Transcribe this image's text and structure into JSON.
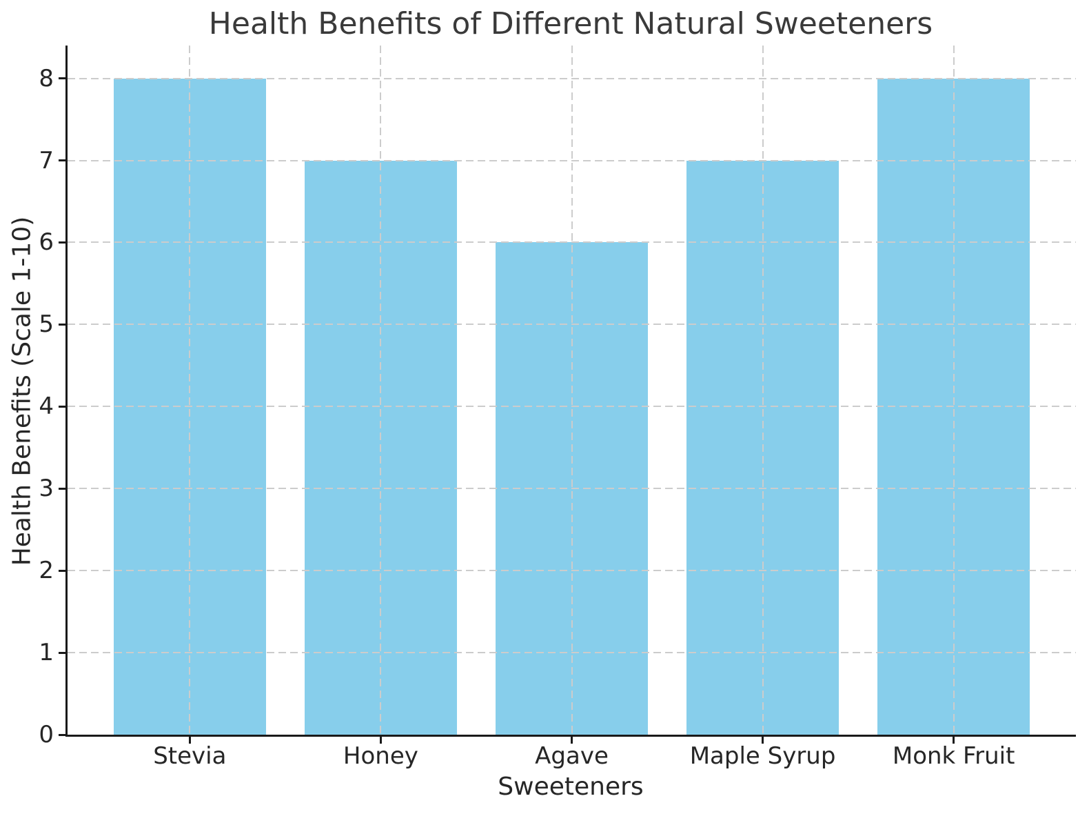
{
  "figure": {
    "background": "#ffffff",
    "title_color": "#3a3a3a",
    "text_color": "#262626",
    "spine_color": "#1a1a1a"
  },
  "chart_data": {
    "type": "bar",
    "title": "Health Benefits of Different Natural Sweeteners",
    "xlabel": "Sweeteners",
    "ylabel": "Health Benefits (Scale 1-10)",
    "categories": [
      "Stevia",
      "Honey",
      "Agave",
      "Maple Syrup",
      "Monk Fruit"
    ],
    "values": [
      8,
      7,
      6,
      7,
      8
    ],
    "ylim": [
      0,
      8.4
    ],
    "yticks": [
      0,
      1,
      2,
      3,
      4,
      5,
      6,
      7,
      8
    ],
    "xlim": [
      -0.64,
      4.64
    ],
    "bar_width_units": 0.8,
    "bar_color": "#87CEEB",
    "grid": true,
    "grid_axis": "both",
    "grid_style": "dashed",
    "grid_color": "#cccccc",
    "grid_above_bars": true,
    "legend": "none"
  }
}
